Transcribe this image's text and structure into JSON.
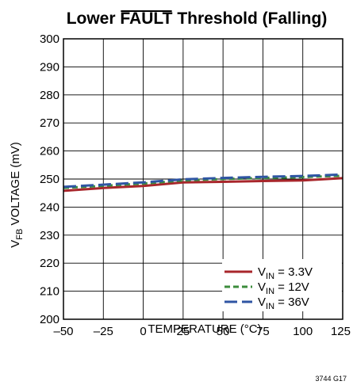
{
  "chart_data": {
    "type": "line",
    "title_prefix": "Lower ",
    "title_overlined": "FAULT",
    "title_suffix": " Threshold (Falling)",
    "xlabel": "TEMPERATURE (°C)",
    "ylabel_prefix": "V",
    "ylabel_sub": "FB",
    "ylabel_suffix": " VOLTAGE (mV)",
    "xlim": [
      -50,
      125
    ],
    "ylim": [
      200,
      300
    ],
    "xticks": [
      -50,
      -25,
      0,
      25,
      50,
      75,
      100,
      125
    ],
    "xtick_labels": [
      "–50",
      "–25",
      "0",
      "25",
      "50",
      "75",
      "100",
      "125"
    ],
    "yticks": [
      200,
      210,
      220,
      230,
      240,
      250,
      260,
      270,
      280,
      290,
      300
    ],
    "ytick_labels": [
      "200",
      "210",
      "220",
      "230",
      "240",
      "250",
      "260",
      "270",
      "280",
      "290",
      "300"
    ],
    "grid": true,
    "legend_position": "bottom-right",
    "series": [
      {
        "name_prefix": "V",
        "name_sub": "IN",
        "name_suffix": " = 3.3V",
        "color": "#a8262b",
        "dash": "solid",
        "x": [
          -50,
          -25,
          0,
          25,
          50,
          75,
          100,
          125
        ],
        "y": [
          245.8,
          246.8,
          247.5,
          248.8,
          249.0,
          249.3,
          249.5,
          250.3
        ]
      },
      {
        "name_prefix": "V",
        "name_sub": "IN",
        "name_suffix": " = 12V",
        "color": "#3c8c3c",
        "dash": "dashed",
        "x": [
          -50,
          -25,
          0,
          25,
          50,
          75,
          100,
          125
        ],
        "y": [
          246.8,
          247.6,
          248.4,
          249.5,
          250.0,
          250.4,
          250.7,
          251.2
        ]
      },
      {
        "name_prefix": "V",
        "name_sub": "IN",
        "name_suffix": " = 36V",
        "color": "#2f55a3",
        "dash": "longdash",
        "x": [
          -50,
          -25,
          0,
          25,
          50,
          75,
          100,
          125
        ],
        "y": [
          247.2,
          248.0,
          248.8,
          249.9,
          250.4,
          250.8,
          251.1,
          251.6
        ]
      }
    ]
  },
  "figure_id": "3744 G17"
}
